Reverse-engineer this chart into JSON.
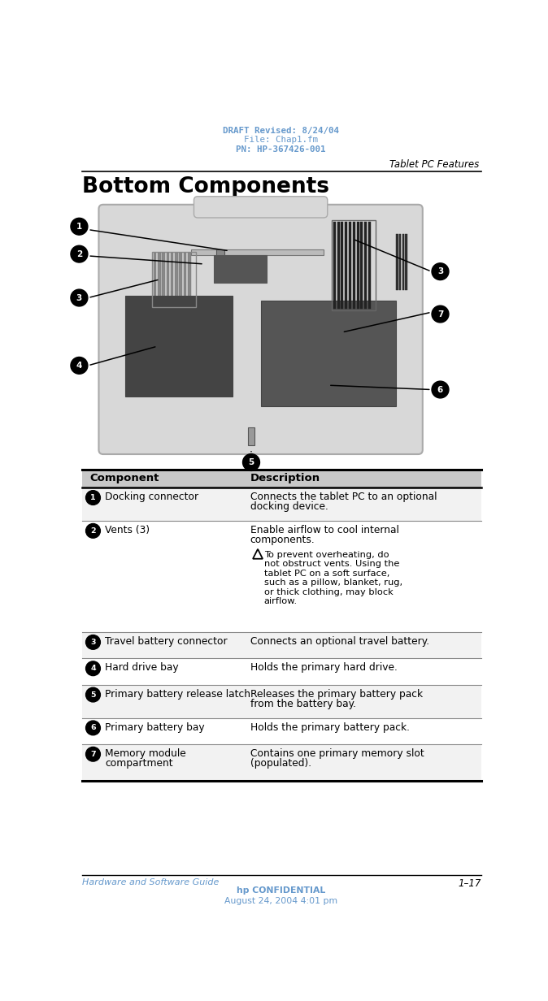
{
  "header_line1": "DRAFT Revised: 8/24/04",
  "header_line2": "File: Chap1.fm",
  "header_line3": "PN: HP-367426-001",
  "header_color": "#6699cc",
  "right_header": "Tablet PC Features",
  "page_title": "Bottom Components",
  "footer_left": "Hardware and Software Guide",
  "footer_right": "1–17",
  "footer_center1": "hp CONFIDENTIAL",
  "footer_center2": "August 24, 2004 4:01 pm",
  "footer_color": "#6699cc",
  "table_header_col1": "Component",
  "table_header_col2": "Description",
  "rows": [
    {
      "num": "1",
      "col1": "Docking connector",
      "col2_lines": [
        "Connects the tablet PC to an optional",
        "docking device."
      ],
      "has_warning": false
    },
    {
      "num": "2",
      "col1": "Vents (3)",
      "col2_lines": [
        "Enable airflow to cool internal",
        "components."
      ],
      "has_warning": true,
      "warning_lines": [
        "To prevent overheating, do",
        "not obstruct vents. Using the",
        "tablet PC on a soft surface,",
        "such as a pillow, blanket, rug,",
        "or thick clothing, may block",
        "airflow."
      ]
    },
    {
      "num": "3",
      "col1": "Travel battery connector",
      "col2_lines": [
        "Connects an optional travel battery."
      ],
      "has_warning": false
    },
    {
      "num": "4",
      "col1": "Hard drive bay",
      "col2_lines": [
        "Holds the primary hard drive."
      ],
      "has_warning": false
    },
    {
      "num": "5",
      "col1": "Primary battery release latch",
      "col2_lines": [
        "Releases the primary battery pack",
        "from the battery bay."
      ],
      "has_warning": false
    },
    {
      "num": "6",
      "col1": "Primary battery bay",
      "col2_lines": [
        "Holds the primary battery pack."
      ],
      "has_warning": false
    },
    {
      "num": "7",
      "col1_lines": [
        "Memory module",
        "compartment"
      ],
      "col2_lines": [
        "Contains one primary memory slot",
        "(populated)."
      ],
      "has_warning": false
    }
  ],
  "col_split": 0.405,
  "bg_color": "#ffffff",
  "text_color": "#000000",
  "table_header_bg": "#c8c8c8",
  "row_bg": "#ffffff",
  "divider_color": "#888888"
}
